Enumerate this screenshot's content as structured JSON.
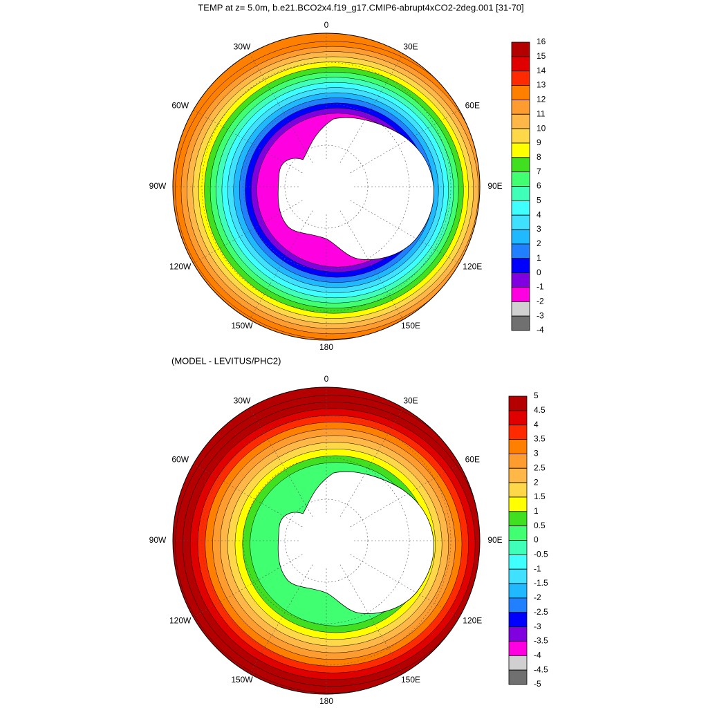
{
  "title": "TEMP at z=   5.0m, b.e21.BCO2x4.f19_g17.CMIP6-abrupt4xCO2-2deg.001 [31-70]",
  "maps": [
    {
      "lon_labels": [
        "0",
        "30E",
        "60E",
        "90E",
        "120E",
        "150E",
        "180",
        "150W",
        "120W",
        "90W",
        "60W",
        "30W"
      ],
      "colorbar": {
        "labels": [
          "16",
          "15",
          "14",
          "13",
          "12",
          "11",
          "10",
          "9",
          "8",
          "7",
          "6",
          "5",
          "4",
          "3",
          "2",
          "1",
          "0",
          "-1",
          "-2",
          "-3",
          "-4"
        ]
      }
    },
    {
      "subtitle": "(MODEL - LEVITUS/PHC2)",
      "lon_labels": [
        "0",
        "30E",
        "60E",
        "90E",
        "120E",
        "150E",
        "180",
        "150W",
        "120W",
        "90W",
        "60W",
        "30W"
      ],
      "colorbar": {
        "labels": [
          "5",
          "4.5",
          "4",
          "3.5",
          "3",
          "2.5",
          "2",
          "1.5",
          "1",
          "0.5",
          "0",
          "-0.5",
          "-1",
          "-1.5",
          "-2",
          "-2.5",
          "-3",
          "-3.5",
          "-4",
          "-4.5",
          "-5"
        ]
      }
    }
  ],
  "colors": [
    "#b40000",
    "#e00000",
    "#ff2a00",
    "#ff8000",
    "#ff9c30",
    "#ffb848",
    "#ffd84a",
    "#ffff00",
    "#40e020",
    "#40ff70",
    "#40ffb8",
    "#40ffff",
    "#40e0ff",
    "#20b8ff",
    "#2080ff",
    "#0000ff",
    "#8000e0",
    "#ff00e0",
    "#d0d0d0",
    "#707070"
  ]
}
